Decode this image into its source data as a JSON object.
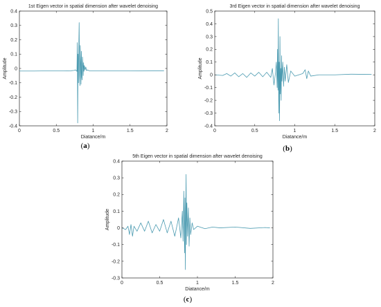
{
  "chart_data": [
    {
      "type": "line",
      "panel_label": {
        "open": "(",
        "letter": "a",
        "close": ")"
      },
      "title": "1st Eigen vector in spatial dimension after wavelet denoising",
      "xlabel": "Diatance/m",
      "ylabel": "Amplitude",
      "xlim": [
        0,
        2
      ],
      "ylim": [
        -0.4,
        0.4
      ],
      "xticks": [
        "0",
        "0.5",
        "1",
        "1.5",
        "2"
      ],
      "yticks": [
        "-0.4",
        "-0.3",
        "-0.2",
        "-0.1",
        "0",
        "0.1",
        "0.2",
        "0.3",
        "0.4"
      ],
      "grid": false,
      "line_color": "#4a9ab0",
      "series": [
        {
          "x": [
            0,
            0.2,
            0.4,
            0.6,
            0.7,
            0.74,
            0.76,
            0.78,
            0.785,
            0.79,
            0.795,
            0.8,
            0.805,
            0.81,
            0.815,
            0.82,
            0.825,
            0.83,
            0.835,
            0.84,
            0.845,
            0.85,
            0.855,
            0.86,
            0.865,
            0.87,
            0.875,
            0.88,
            0.89,
            0.9,
            0.91,
            0.92,
            0.95,
            1.0,
            1.2,
            1.5,
            1.8,
            1.96
          ],
          "y": [
            -0.018,
            -0.018,
            -0.017,
            -0.017,
            -0.016,
            -0.014,
            -0.01,
            -0.02,
            0.18,
            -0.38,
            0.1,
            -0.1,
            0.15,
            0.32,
            -0.05,
            -0.12,
            0.16,
            0.05,
            -0.11,
            0.12,
            -0.06,
            -0.08,
            0.08,
            0.03,
            -0.05,
            0.04,
            -0.02,
            0.02,
            -0.01,
            0.01,
            -0.015,
            -0.01,
            -0.017,
            -0.017,
            -0.017,
            -0.017,
            -0.016,
            -0.016
          ]
        }
      ]
    },
    {
      "type": "line",
      "panel_label": {
        "open": "(",
        "letter": "b",
        "close": ")"
      },
      "title": "3rd Eigen vector in spatial dimension after wavelet denoising",
      "xlabel": "Diatance/m",
      "ylabel": "Amplitude",
      "xlim": [
        0,
        2
      ],
      "ylim": [
        -0.4,
        0.5
      ],
      "xticks": [
        "0",
        "0.5",
        "1",
        "1.5",
        "2"
      ],
      "yticks": [
        "-0.4",
        "-0.3",
        "-0.2",
        "-0.1",
        "0",
        "0.1",
        "0.2",
        "0.3",
        "0.4",
        "0.5"
      ],
      "grid": false,
      "line_color": "#4a9ab0",
      "series": [
        {
          "x": [
            0,
            0.1,
            0.15,
            0.2,
            0.25,
            0.3,
            0.35,
            0.4,
            0.45,
            0.5,
            0.55,
            0.6,
            0.65,
            0.7,
            0.72,
            0.74,
            0.76,
            0.77,
            0.78,
            0.785,
            0.79,
            0.795,
            0.8,
            0.805,
            0.81,
            0.815,
            0.82,
            0.825,
            0.83,
            0.835,
            0.84,
            0.85,
            0.86,
            0.87,
            0.88,
            0.9,
            0.92,
            0.95,
            1.0,
            1.05,
            1.1,
            1.13,
            1.15,
            1.17,
            1.2,
            1.3,
            1.5,
            1.7,
            1.96
          ],
          "y": [
            0.0,
            -0.005,
            0.01,
            -0.01,
            0.015,
            -0.015,
            0.01,
            -0.02,
            0.015,
            -0.01,
            0.02,
            -0.015,
            0.02,
            -0.02,
            0.05,
            -0.08,
            0.02,
            0.1,
            -0.1,
            0.2,
            -0.12,
            0.44,
            -0.3,
            0.1,
            -0.36,
            0.3,
            -0.15,
            0.05,
            -0.2,
            0.15,
            -0.05,
            0.1,
            -0.09,
            0.06,
            -0.05,
            0.08,
            -0.06,
            0.03,
            -0.01,
            0.0,
            0.01,
            0.04,
            -0.03,
            0.03,
            -0.01,
            0.0,
            0.0,
            0.005,
            0.003
          ]
        }
      ]
    },
    {
      "type": "line",
      "panel_label": {
        "open": "(",
        "letter": "c",
        "close": ")"
      },
      "title": "5th Eigen vector in spatial dimension after wavelet denoising",
      "xlabel": "Diatance/m",
      "ylabel": "Amplitude",
      "xlim": [
        0,
        2
      ],
      "ylim": [
        -0.3,
        0.4
      ],
      "xticks": [
        "0",
        "0.5",
        "1",
        "1.5",
        "2"
      ],
      "yticks": [
        "-0.3",
        "-0.2",
        "-0.1",
        "0",
        "0.1",
        "0.2",
        "0.3",
        "0.4"
      ],
      "grid": false,
      "line_color": "#4a9ab0",
      "series": [
        {
          "x": [
            0,
            0.05,
            0.08,
            0.1,
            0.12,
            0.14,
            0.16,
            0.2,
            0.25,
            0.3,
            0.35,
            0.4,
            0.45,
            0.5,
            0.55,
            0.6,
            0.65,
            0.7,
            0.75,
            0.78,
            0.8,
            0.81,
            0.82,
            0.83,
            0.835,
            0.84,
            0.845,
            0.85,
            0.855,
            0.86,
            0.87,
            0.88,
            0.89,
            0.9,
            0.91,
            0.93,
            0.95,
            1.0,
            1.1,
            1.2,
            1.3,
            1.5,
            1.7,
            1.9,
            1.96
          ],
          "y": [
            0.0,
            -0.01,
            0.01,
            -0.04,
            0.02,
            -0.05,
            0.01,
            -0.02,
            0.03,
            -0.02,
            0.04,
            -0.03,
            0.02,
            -0.02,
            0.05,
            -0.03,
            0.04,
            -0.05,
            0.06,
            -0.06,
            0.1,
            -0.08,
            0.22,
            -0.15,
            0.18,
            -0.25,
            0.1,
            0.32,
            -0.1,
            0.15,
            -0.05,
            0.12,
            -0.11,
            0.06,
            -0.04,
            0.03,
            -0.01,
            0.01,
            -0.005,
            0.005,
            0.0,
            0.005,
            -0.003,
            0.002,
            0.0
          ]
        }
      ]
    }
  ]
}
